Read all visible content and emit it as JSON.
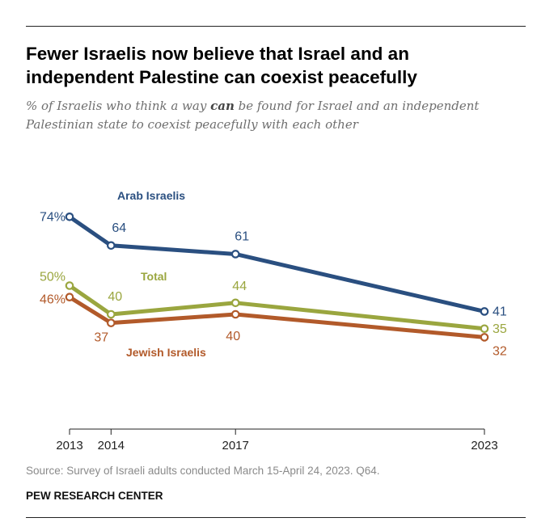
{
  "title": "Fewer Israelis now believe that Israel and an independent Palestine can coexist peacefully",
  "subtitle": {
    "before": "% of Israelis who think a way ",
    "emphasis": "can",
    "after": " be found for Israel and an independent Palestinian state to coexist peacefully with each other"
  },
  "source": "Source: Survey of Israeli adults conducted March 15-April 24, 2023. Q64.",
  "organization": "PEW RESEARCH CENTER",
  "chart_data": {
    "type": "line",
    "x": [
      2013,
      2014,
      2017,
      2023
    ],
    "x_tick_labels": [
      "2013",
      "2014",
      "2017",
      "2023"
    ],
    "ylim": [
      0,
      100
    ],
    "grid": false,
    "legend": "inline labels",
    "series": [
      {
        "name": "Arab Israelis",
        "color": "#2a4f80",
        "values": [
          74,
          64,
          61,
          41
        ],
        "point_labels": [
          "74%",
          "64",
          "61",
          "41"
        ]
      },
      {
        "name": "Total",
        "color": "#9aa63f",
        "values": [
          50,
          40,
          44,
          35
        ],
        "point_labels": [
          "50%",
          "40",
          "44",
          "35"
        ]
      },
      {
        "name": "Jewish Israelis",
        "color": "#b25a2a",
        "values": [
          46,
          37,
          40,
          32
        ],
        "point_labels": [
          "46%",
          "37",
          "40",
          "32"
        ]
      }
    ]
  }
}
